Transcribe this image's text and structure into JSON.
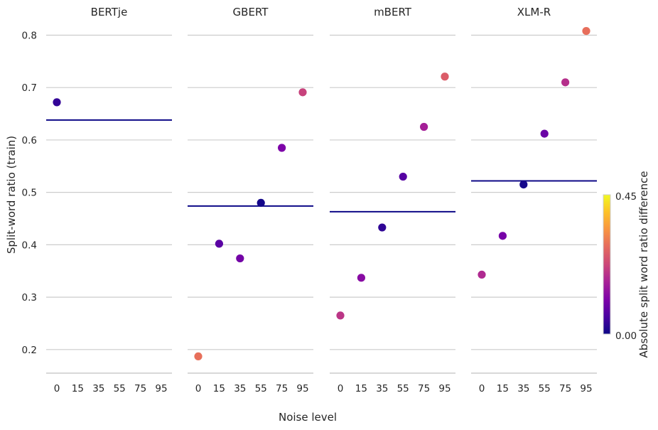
{
  "chart_data": {
    "type": "scatter",
    "ylabel": "Split-word ratio (train)",
    "xlabel": "Noise level",
    "x_categories": [
      "0",
      "15",
      "35",
      "55",
      "75",
      "95"
    ],
    "yticks": [
      0.2,
      0.3,
      0.4,
      0.5,
      0.6,
      0.7,
      0.8
    ],
    "ylim": [
      0.155,
      0.84
    ],
    "grid": "horizontal",
    "colormap": "plasma",
    "colorbar": {
      "label": "Absolute split word ratio difference",
      "min": 0.0,
      "max": 0.45,
      "tick_labels": [
        "0.00",
        "0.45"
      ],
      "placement": "right"
    },
    "panels": [
      {
        "title": "BERTje",
        "reference_line": 0.638,
        "points": [
          {
            "x": "0",
            "y": 0.672
          }
        ]
      },
      {
        "title": "GBERT",
        "reference_line": 0.474,
        "points": [
          {
            "x": "0",
            "y": 0.187
          },
          {
            "x": "15",
            "y": 0.402
          },
          {
            "x": "35",
            "y": 0.374
          },
          {
            "x": "55",
            "y": 0.48
          },
          {
            "x": "75",
            "y": 0.585
          },
          {
            "x": "95",
            "y": 0.691
          }
        ]
      },
      {
        "title": "mBERT",
        "reference_line": 0.463,
        "points": [
          {
            "x": "0",
            "y": 0.265
          },
          {
            "x": "15",
            "y": 0.337
          },
          {
            "x": "35",
            "y": 0.433
          },
          {
            "x": "55",
            "y": 0.53
          },
          {
            "x": "75",
            "y": 0.625
          },
          {
            "x": "95",
            "y": 0.721
          }
        ]
      },
      {
        "title": "XLM-R",
        "reference_line": 0.522,
        "points": [
          {
            "x": "0",
            "y": 0.343
          },
          {
            "x": "15",
            "y": 0.417
          },
          {
            "x": "35",
            "y": 0.515
          },
          {
            "x": "55",
            "y": 0.612
          },
          {
            "x": "75",
            "y": 0.71
          },
          {
            "x": "95",
            "y": 0.808
          }
        ]
      }
    ]
  }
}
